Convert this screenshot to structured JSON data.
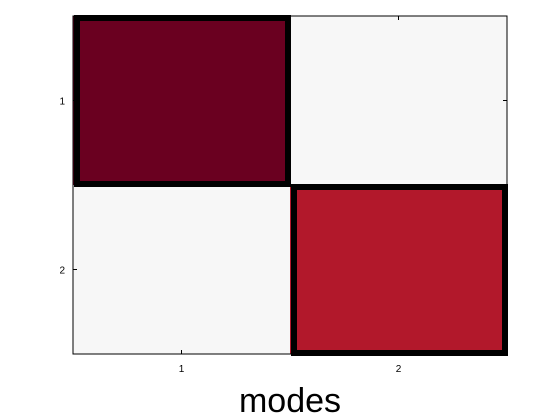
{
  "chart_data": {
    "type": "heatmap",
    "title": "",
    "xlabel": "modes",
    "ylabel": "",
    "x_categories": [
      "1",
      "2"
    ],
    "y_categories": [
      "1",
      "2"
    ],
    "x_ticks": [
      "1",
      "2"
    ],
    "y_ticks": [
      "1",
      "2"
    ],
    "cells": [
      {
        "row": "1",
        "col": "1",
        "color": "#6a0020",
        "highlighted": true
      },
      {
        "row": "1",
        "col": "2",
        "color": "#f7f7f7",
        "highlighted": false
      },
      {
        "row": "2",
        "col": "1",
        "color": "#f7f7f7",
        "highlighted": false
      },
      {
        "row": "2",
        "col": "2",
        "color": "#b2182b",
        "highlighted": true
      }
    ],
    "highlight_color": "#000000",
    "grid": false,
    "legend": "none"
  }
}
